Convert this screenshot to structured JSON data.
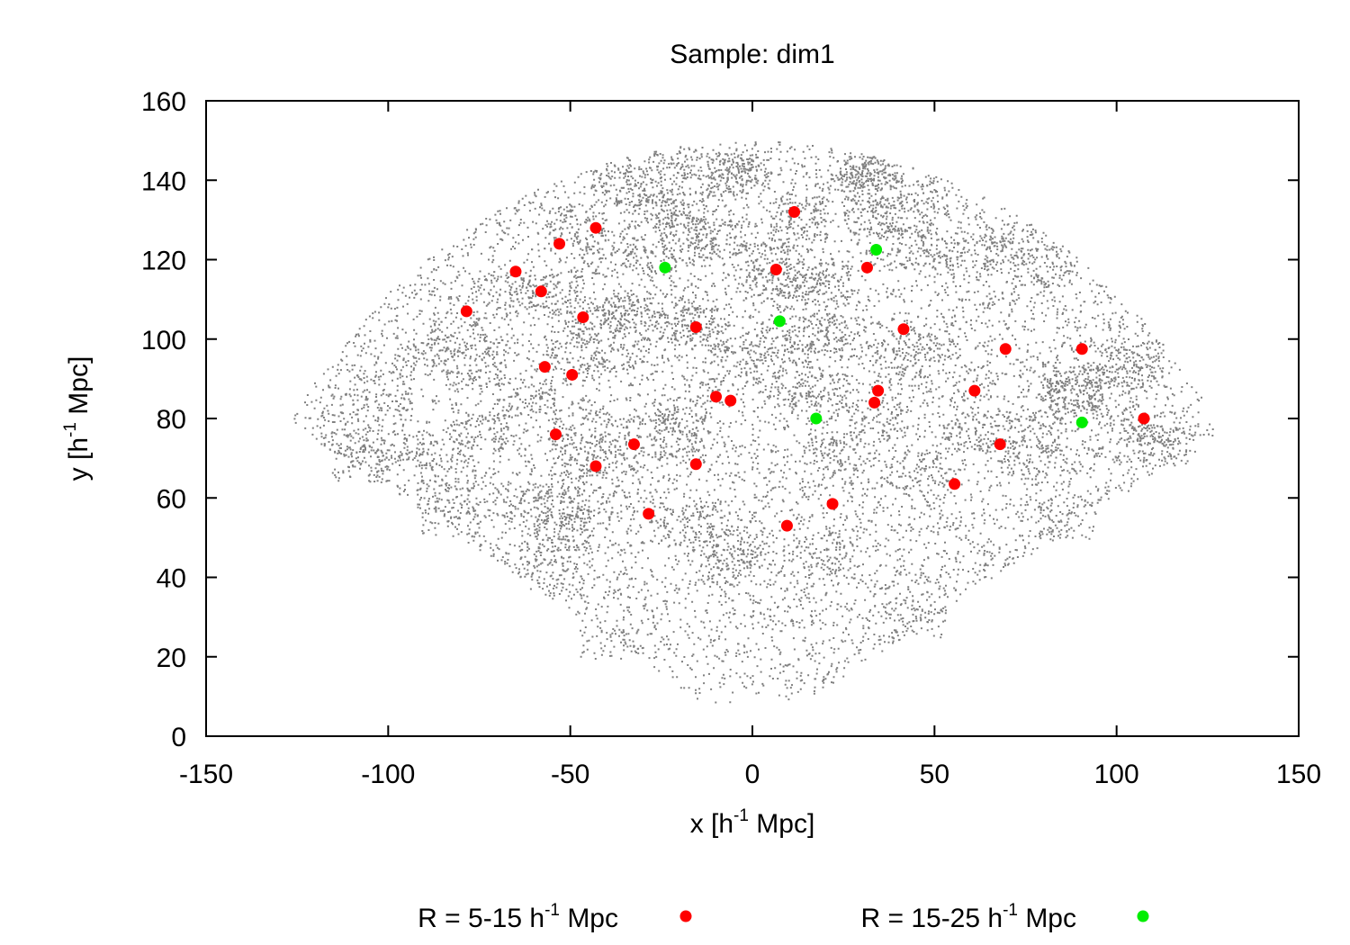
{
  "chart_data": {
    "type": "scatter",
    "title": "Sample: dim1",
    "xlabel": {
      "pre": "x [h",
      "sup": "-1",
      "post": " Mpc]"
    },
    "ylabel": {
      "pre": "y [h",
      "sup": "-1",
      "post": " Mpc]"
    },
    "xlim": [
      -150,
      150
    ],
    "ylim": [
      0,
      160
    ],
    "xticks": [
      -150,
      -100,
      -50,
      0,
      50,
      100,
      150
    ],
    "yticks": [
      0,
      20,
      40,
      60,
      80,
      100,
      120,
      140,
      160
    ],
    "background_points": {
      "description_hidden": true,
      "color": "#808080",
      "count": 14000,
      "radial_max": 150,
      "angle_range_deg": [
        31,
        148
      ]
    },
    "series": [
      {
        "name": {
          "pre": "R = 5-15 h",
          "sup": "-1",
          "post": " Mpc"
        },
        "color": "#ff0000",
        "points": [
          [
            11.5,
            132
          ],
          [
            -43,
            128
          ],
          [
            -53,
            124
          ],
          [
            -65,
            117
          ],
          [
            6.5,
            117.5
          ],
          [
            31.5,
            118
          ],
          [
            -58,
            112
          ],
          [
            -78.5,
            107
          ],
          [
            -46.5,
            105.5
          ],
          [
            -15.5,
            103
          ],
          [
            41.5,
            102.5
          ],
          [
            69.5,
            97.5
          ],
          [
            90.5,
            97.5
          ],
          [
            -57,
            93
          ],
          [
            -49.5,
            91
          ],
          [
            34.5,
            87
          ],
          [
            61,
            87
          ],
          [
            -10,
            85.5
          ],
          [
            -6,
            84.5
          ],
          [
            33.5,
            84
          ],
          [
            107.5,
            80
          ],
          [
            -54,
            76
          ],
          [
            -32.5,
            73.5
          ],
          [
            68,
            73.5
          ],
          [
            -43,
            68
          ],
          [
            -15.5,
            68.5
          ],
          [
            55.5,
            63.5
          ],
          [
            22,
            58.5
          ],
          [
            -28.5,
            56
          ],
          [
            9.5,
            53
          ]
        ]
      },
      {
        "name": {
          "pre": "R = 15-25 h",
          "sup": "-1",
          "post": " Mpc"
        },
        "color": "#00ee00",
        "points": [
          [
            -24,
            118
          ],
          [
            34,
            122.5
          ],
          [
            7.5,
            104.5
          ],
          [
            17.5,
            80
          ],
          [
            90.5,
            79
          ]
        ]
      }
    ],
    "legend_position": "bottom"
  }
}
